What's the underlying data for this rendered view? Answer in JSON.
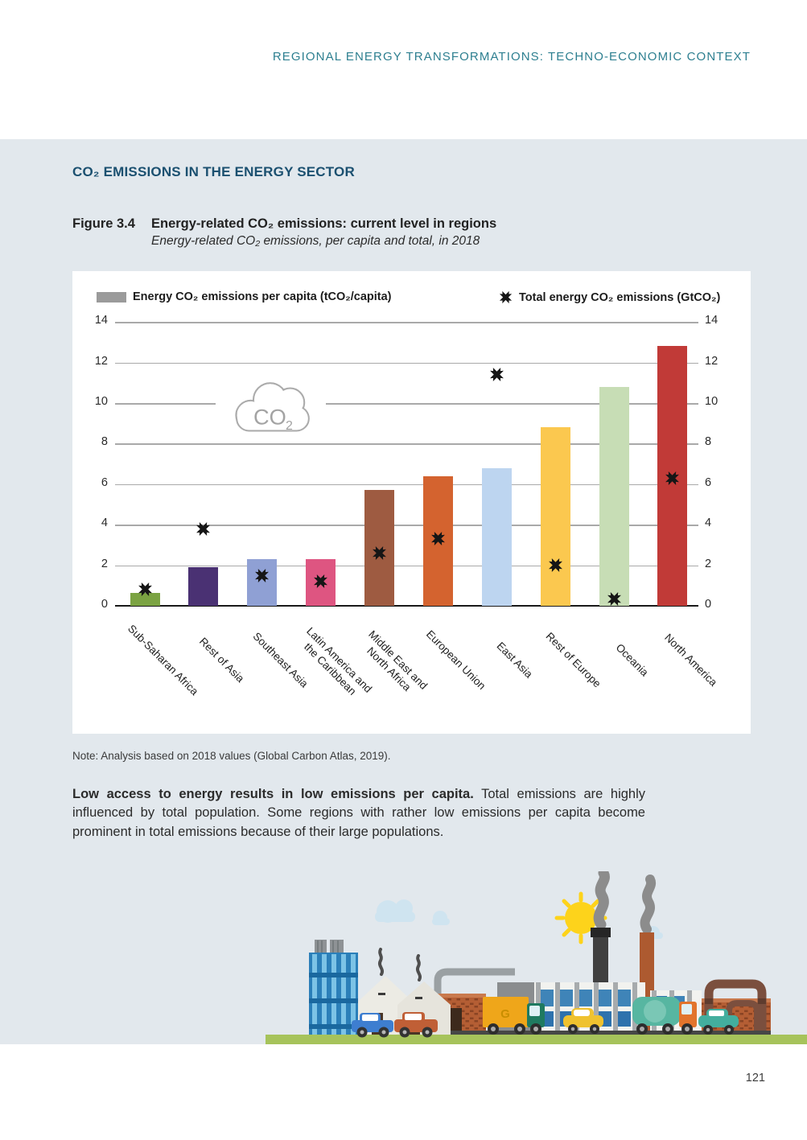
{
  "page": {
    "header": "REGIONAL ENERGY TRANSFORMATIONS: TECHNO-ECONOMIC CONTEXT",
    "section_title": "CO₂ EMISSIONS IN THE ENERGY SECTOR",
    "page_number": "121"
  },
  "figure": {
    "label": "Figure 3.4",
    "title": "Energy-related CO₂ emissions: current level in regions",
    "subtitle": "Energy-related CO₂ emissions, per capita and total, in 2018"
  },
  "note": "Note: Analysis based on 2018 values (Global Carbon Atlas, 2019).",
  "body": {
    "lead": "Low access to energy results in low emissions per capita.",
    "text": "Total emissions are highly influenced by total population. Some regions with rather low emissions per capita become prominent in total emissions because of their large populations."
  },
  "chart_data": {
    "type": "bar",
    "title": "Energy-related CO₂ emissions, per capita and total, in 2018",
    "legend": [
      {
        "label": "Energy CO₂ emissions per capita (tCO₂/capita)",
        "marker": "bar-swatch",
        "color": "#9b9b9b"
      },
      {
        "label": "Total energy CO₂ emissions (GtCO₂)",
        "marker": "x-marker",
        "color": "#161616"
      }
    ],
    "ylim": [
      0,
      14
    ],
    "yticks": [
      0,
      2,
      4,
      6,
      8,
      10,
      12,
      14
    ],
    "grid": "horizontal",
    "dual_axis_labels": "same scale shown on left and right",
    "categories": [
      [
        "Sub-Saharan Africa"
      ],
      [
        "Rest of Asia"
      ],
      [
        "Southeast Asia"
      ],
      [
        "Latin America and",
        "the Caribbean"
      ],
      [
        "Middle East and",
        "North Africa"
      ],
      [
        "European Union"
      ],
      [
        "East Asia"
      ],
      [
        "Rest of Europe"
      ],
      [
        "Oceania"
      ],
      [
        "North America"
      ]
    ],
    "series": [
      {
        "name": "Energy CO₂ emissions per capita (tCO₂/capita)",
        "values": [
          0.65,
          1.9,
          2.3,
          2.3,
          5.7,
          6.4,
          6.8,
          8.8,
          10.8,
          12.8
        ]
      },
      {
        "name": "Total energy CO₂ emissions (GtCO₂)",
        "values": [
          0.8,
          3.8,
          1.5,
          1.2,
          2.6,
          3.3,
          11.4,
          2.0,
          0.35,
          6.3
        ]
      }
    ],
    "bar_colors": [
      "#7ba342",
      "#4a3173",
      "#8fa0d4",
      "#de5581",
      "#9e5b41",
      "#d4632f",
      "#bdd5f0",
      "#fbc84f",
      "#c7ddb5",
      "#c13a37"
    ],
    "cloud_label": {
      "main": "CO",
      "sub": "2"
    }
  },
  "illustration": {
    "truck_label": "G"
  }
}
